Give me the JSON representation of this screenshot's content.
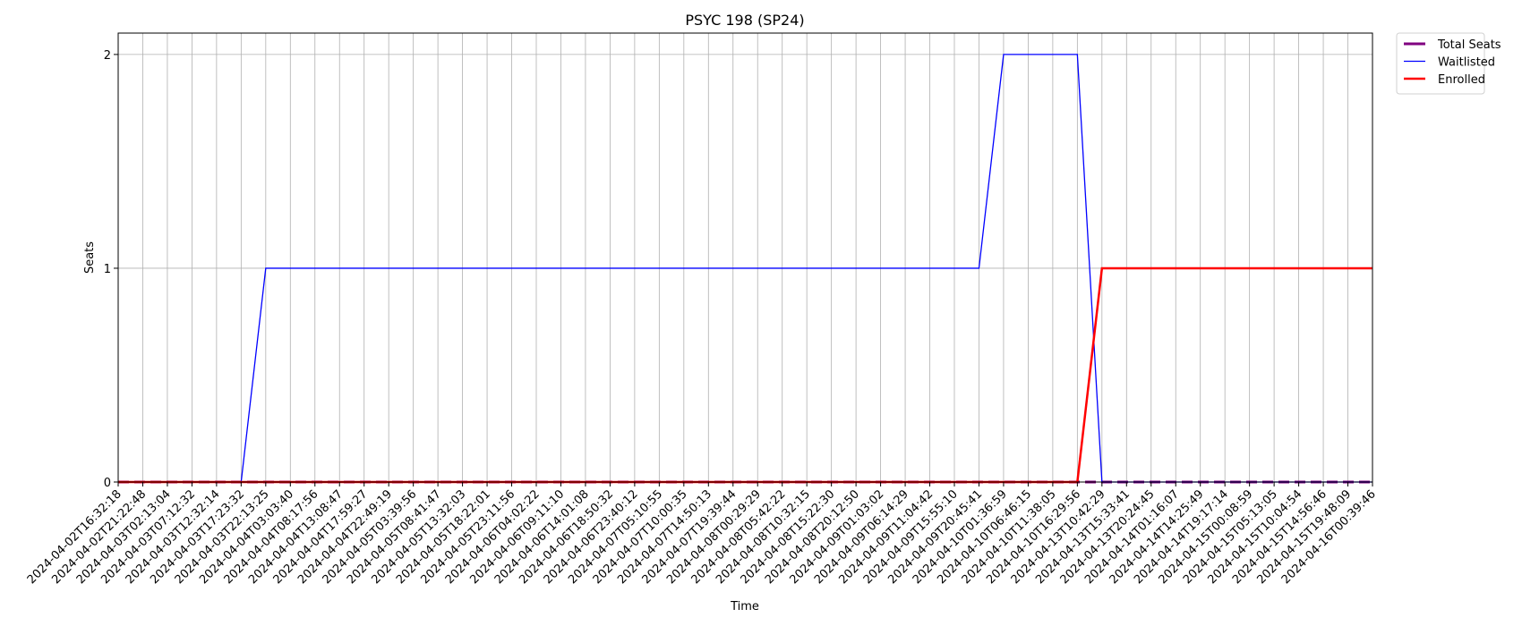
{
  "chart_data": {
    "type": "line",
    "title": "PSYC 198 (SP24)",
    "xlabel": "Time",
    "ylabel": "Seats",
    "ylim": [
      0,
      2.1
    ],
    "yticks": [
      0,
      1,
      2
    ],
    "grid": true,
    "legend_position": "outside-top-right",
    "x": [
      "2024-04-02T16:32:18",
      "2024-04-02T21:22:48",
      "2024-04-03T02:13:04",
      "2024-04-03T07:12:32",
      "2024-04-03T12:32:14",
      "2024-04-03T17:23:32",
      "2024-04-03T22:13:25",
      "2024-04-04T03:03:40",
      "2024-04-04T08:17:56",
      "2024-04-04T13:08:47",
      "2024-04-04T17:59:27",
      "2024-04-04T22:49:19",
      "2024-04-05T03:39:56",
      "2024-04-05T08:41:47",
      "2024-04-05T13:32:03",
      "2024-04-05T18:22:01",
      "2024-04-05T23:11:56",
      "2024-04-06T04:02:22",
      "2024-04-06T09:11:10",
      "2024-04-06T14:01:08",
      "2024-04-06T18:50:32",
      "2024-04-06T23:40:12",
      "2024-04-07T05:10:55",
      "2024-04-07T10:00:35",
      "2024-04-07T14:50:13",
      "2024-04-07T19:39:44",
      "2024-04-08T00:29:29",
      "2024-04-08T05:42:22",
      "2024-04-08T10:32:15",
      "2024-04-08T15:22:30",
      "2024-04-08T20:12:50",
      "2024-04-09T01:03:02",
      "2024-04-09T06:14:29",
      "2024-04-09T11:04:42",
      "2024-04-09T15:55:10",
      "2024-04-09T20:45:41",
      "2024-04-10T01:36:59",
      "2024-04-10T06:46:15",
      "2024-04-10T11:38:05",
      "2024-04-10T16:29:56",
      "2024-04-13T10:42:29",
      "2024-04-13T15:33:41",
      "2024-04-13T20:24:45",
      "2024-04-14T01:16:07",
      "2024-04-14T14:25:49",
      "2024-04-14T19:17:14",
      "2024-04-15T00:08:59",
      "2024-04-15T05:13:05",
      "2024-04-15T10:04:54",
      "2024-04-15T14:56:46",
      "2024-04-15T19:48:09",
      "2024-04-16T00:39:46"
    ],
    "series": [
      {
        "name": "Total Seats",
        "color": "#800080",
        "style": "dashed",
        "values": [
          0,
          0,
          0,
          0,
          0,
          0,
          0,
          0,
          0,
          0,
          0,
          0,
          0,
          0,
          0,
          0,
          0,
          0,
          0,
          0,
          0,
          0,
          0,
          0,
          0,
          0,
          0,
          0,
          0,
          0,
          0,
          0,
          0,
          0,
          0,
          0,
          0,
          0,
          0,
          0,
          0,
          0,
          0,
          0,
          0,
          0,
          0,
          0,
          0,
          0,
          0,
          0
        ]
      },
      {
        "name": "Waitlisted",
        "color": "#0000ff",
        "style": "solid",
        "values": [
          0,
          0,
          0,
          0,
          0,
          0,
          1,
          1,
          1,
          1,
          1,
          1,
          1,
          1,
          1,
          1,
          1,
          1,
          1,
          1,
          1,
          1,
          1,
          1,
          1,
          1,
          1,
          1,
          1,
          1,
          1,
          1,
          1,
          1,
          1,
          1,
          2,
          2,
          2,
          2,
          0,
          0,
          0,
          0,
          0,
          0,
          0,
          0,
          0,
          0,
          0,
          0
        ]
      },
      {
        "name": "Enrolled",
        "color": "#ff0000",
        "style": "solid",
        "values": [
          0,
          0,
          0,
          0,
          0,
          0,
          0,
          0,
          0,
          0,
          0,
          0,
          0,
          0,
          0,
          0,
          0,
          0,
          0,
          0,
          0,
          0,
          0,
          0,
          0,
          0,
          0,
          0,
          0,
          0,
          0,
          0,
          0,
          0,
          0,
          0,
          0,
          0,
          0,
          0,
          1,
          1,
          1,
          1,
          1,
          1,
          1,
          1,
          1,
          1,
          1,
          1
        ]
      }
    ]
  }
}
